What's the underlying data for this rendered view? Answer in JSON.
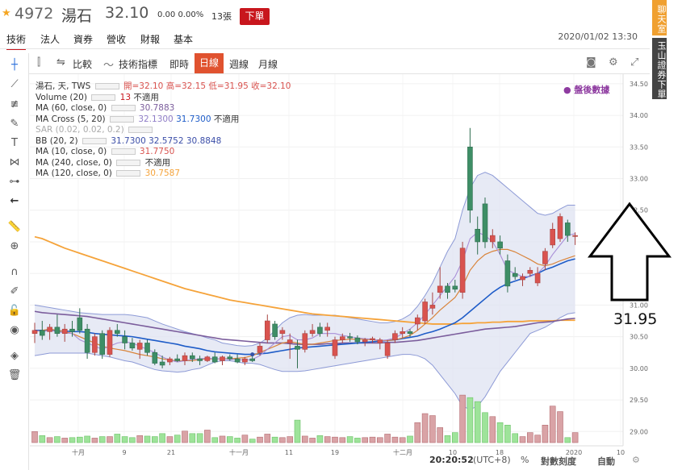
{
  "header": {
    "code": "4972",
    "name": "湯石",
    "price": "32.10",
    "change": "0.00 0.00%",
    "volume": "13張",
    "order_label": "下單"
  },
  "tabs": [
    "技術",
    "法人",
    "資券",
    "營收",
    "財報",
    "基本"
  ],
  "datetime": "2020/01/02 13:30",
  "side": {
    "chat": "聊天室",
    "broker": "玉山證券下單"
  },
  "toolbar": {
    "compare": "比較",
    "indicators": "技術指標",
    "realtime": "即時",
    "daily": "日線",
    "weekly": "週線",
    "monthly": "月線"
  },
  "legend": {
    "main": "湯石, 天, TWS",
    "ohlc": [
      "開=32.10",
      "高=32.15",
      "低=31.95",
      "收=32.10"
    ],
    "volume_label": "Volume (20)",
    "volume_value": "13",
    "volume_na": "不適用",
    "ma60_label": "MA (60, close, 0)",
    "ma60_value": "30.7883",
    "macross_label": "MA Cross (5, 20)",
    "macross_v1": "32.1300",
    "macross_v2": "31.7300",
    "macross_na": "不適用",
    "sar_label": "SAR (0.02, 0.02, 0.2)",
    "bb_label": "BB (20, 2)",
    "bb_values": [
      "31.7300",
      "32.5752",
      "30.8848"
    ],
    "ma10_label": "MA (10, close, 0)",
    "ma10_value": "31.7750",
    "ma240_label": "MA (240, close, 0)",
    "ma240_na": "不適用",
    "ma120_label": "MA (120, close, 0)",
    "ma120_value": "30.7587"
  },
  "after_hours": "● 盤後數據",
  "status": {
    "time": "20:20:52",
    "tz": "(UTC+8)",
    "percent": "%",
    "log_scale": "對數刻度",
    "auto": "自動"
  },
  "annotation": {
    "value": "31.95"
  },
  "colors": {
    "up": "#d9534f",
    "down": "#3e8e66",
    "ma_orange": "#f5a33a",
    "ma_blue": "#1e5cc8",
    "ma_purple": "#7b5d9c",
    "bb_fill": "#dfe3f1",
    "vol_up": "#d9a3a6",
    "vol_down": "#9ee39a",
    "price_tag": "#e23a34"
  },
  "chart_data": {
    "type": "candlestick",
    "y_axis": {
      "range": [
        28.8,
        34.6
      ],
      "ticks": [
        "34.50",
        "34.00",
        "33.50",
        "33.00",
        "32.50",
        "32.00",
        "31.50",
        "31.00",
        "30.50",
        "30.00",
        "29.50",
        "29.00"
      ]
    },
    "x_axis": {
      "ticks": [
        "十月",
        "9",
        "21",
        "十一月",
        "11",
        "19",
        "十二月",
        "10",
        "18",
        "2020",
        "10"
      ]
    },
    "last_price": "32.10",
    "candles": [
      {
        "o": 30.55,
        "h": 30.72,
        "l": 30.4,
        "c": 30.6
      },
      {
        "o": 30.6,
        "h": 30.75,
        "l": 30.45,
        "c": 30.52
      },
      {
        "o": 30.58,
        "h": 30.7,
        "l": 30.45,
        "c": 30.65
      },
      {
        "o": 30.65,
        "h": 30.85,
        "l": 30.5,
        "c": 30.55
      },
      {
        "o": 30.55,
        "h": 30.7,
        "l": 30.42,
        "c": 30.62
      },
      {
        "o": 30.62,
        "h": 30.75,
        "l": 30.5,
        "c": 30.58
      },
      {
        "o": 30.8,
        "h": 30.95,
        "l": 30.55,
        "c": 30.6
      },
      {
        "o": 30.62,
        "h": 30.7,
        "l": 30.15,
        "c": 30.25
      },
      {
        "o": 30.25,
        "h": 30.55,
        "l": 30.2,
        "c": 30.5
      },
      {
        "o": 30.55,
        "h": 30.6,
        "l": 30.15,
        "c": 30.22
      },
      {
        "o": 30.22,
        "h": 30.65,
        "l": 30.18,
        "c": 30.6
      },
      {
        "o": 30.6,
        "h": 30.7,
        "l": 30.5,
        "c": 30.55
      },
      {
        "o": 30.5,
        "h": 30.6,
        "l": 30.3,
        "c": 30.4
      },
      {
        "o": 30.4,
        "h": 30.48,
        "l": 30.28,
        "c": 30.32
      },
      {
        "o": 30.3,
        "h": 30.45,
        "l": 30.15,
        "c": 30.4
      },
      {
        "o": 30.4,
        "h": 30.45,
        "l": 30.2,
        "c": 30.25
      },
      {
        "o": 30.25,
        "h": 30.3,
        "l": 30.05,
        "c": 30.08
      },
      {
        "o": 30.1,
        "h": 30.2,
        "l": 30.0,
        "c": 30.05
      },
      {
        "o": 30.1,
        "h": 30.18,
        "l": 30.05,
        "c": 30.15
      },
      {
        "o": 30.15,
        "h": 30.22,
        "l": 30.1,
        "c": 30.12
      },
      {
        "o": 30.12,
        "h": 30.25,
        "l": 30.05,
        "c": 30.2
      },
      {
        "o": 30.2,
        "h": 30.25,
        "l": 30.1,
        "c": 30.15
      },
      {
        "o": 30.15,
        "h": 30.2,
        "l": 30.05,
        "c": 30.12
      },
      {
        "o": 30.12,
        "h": 30.2,
        "l": 30.1,
        "c": 30.18
      },
      {
        "o": 30.18,
        "h": 30.25,
        "l": 30.08,
        "c": 30.1
      },
      {
        "o": 30.12,
        "h": 30.2,
        "l": 30.05,
        "c": 30.18
      },
      {
        "o": 30.18,
        "h": 30.22,
        "l": 30.12,
        "c": 30.15
      },
      {
        "o": 30.15,
        "h": 30.22,
        "l": 30.08,
        "c": 30.1
      },
      {
        "o": 30.1,
        "h": 30.18,
        "l": 30.05,
        "c": 30.15
      },
      {
        "o": 30.15,
        "h": 30.2,
        "l": 30.1,
        "c": 30.12
      },
      {
        "o": 30.25,
        "h": 30.4,
        "l": 30.2,
        "c": 30.35
      },
      {
        "o": 30.45,
        "h": 30.85,
        "l": 30.4,
        "c": 30.75
      },
      {
        "o": 30.7,
        "h": 30.75,
        "l": 30.45,
        "c": 30.5
      },
      {
        "o": 30.55,
        "h": 30.65,
        "l": 30.45,
        "c": 30.6
      },
      {
        "o": 30.4,
        "h": 30.55,
        "l": 30.15,
        "c": 30.45
      },
      {
        "o": 30.35,
        "h": 30.45,
        "l": 30.0,
        "c": 30.3
      },
      {
        "o": 30.3,
        "h": 30.6,
        "l": 30.25,
        "c": 30.55
      },
      {
        "o": 30.55,
        "h": 30.7,
        "l": 30.5,
        "c": 30.6
      },
      {
        "o": 30.65,
        "h": 30.72,
        "l": 30.5,
        "c": 30.55
      },
      {
        "o": 30.6,
        "h": 30.72,
        "l": 30.5,
        "c": 30.65
      },
      {
        "o": 30.2,
        "h": 30.5,
        "l": 30.15,
        "c": 30.45
      },
      {
        "o": 30.45,
        "h": 30.55,
        "l": 30.4,
        "c": 30.5
      },
      {
        "o": 30.5,
        "h": 30.56,
        "l": 30.42,
        "c": 30.48
      },
      {
        "o": 30.48,
        "h": 30.52,
        "l": 30.38,
        "c": 30.42
      },
      {
        "o": 30.42,
        "h": 30.48,
        "l": 30.35,
        "c": 30.45
      },
      {
        "o": 30.45,
        "h": 30.5,
        "l": 30.4,
        "c": 30.47
      },
      {
        "o": 30.4,
        "h": 30.48,
        "l": 30.3,
        "c": 30.45
      },
      {
        "o": 30.2,
        "h": 30.45,
        "l": 30.15,
        "c": 30.4
      },
      {
        "o": 30.45,
        "h": 30.6,
        "l": 30.4,
        "c": 30.55
      },
      {
        "o": 30.55,
        "h": 30.65,
        "l": 30.48,
        "c": 30.58
      },
      {
        "o": 30.58,
        "h": 30.62,
        "l": 30.5,
        "c": 30.55
      },
      {
        "o": 30.7,
        "h": 30.85,
        "l": 30.6,
        "c": 30.8
      },
      {
        "o": 30.75,
        "h": 31.1,
        "l": 30.7,
        "c": 31.05
      },
      {
        "o": 30.95,
        "h": 31.2,
        "l": 30.85,
        "c": 31.0
      },
      {
        "o": 31.2,
        "h": 31.6,
        "l": 31.1,
        "c": 31.3
      },
      {
        "o": 31.3,
        "h": 31.35,
        "l": 31.1,
        "c": 31.2
      },
      {
        "o": 31.3,
        "h": 31.4,
        "l": 31.2,
        "c": 31.25
      },
      {
        "o": 31.2,
        "h": 32.0,
        "l": 31.1,
        "c": 31.9
      },
      {
        "o": 33.5,
        "h": 33.8,
        "l": 32.3,
        "c": 32.5
      },
      {
        "o": 32.2,
        "h": 32.4,
        "l": 31.8,
        "c": 32.0
      },
      {
        "o": 32.6,
        "h": 32.7,
        "l": 31.9,
        "c": 32.0
      },
      {
        "o": 32.0,
        "h": 32.2,
        "l": 31.9,
        "c": 32.1
      },
      {
        "o": 32.0,
        "h": 32.1,
        "l": 31.8,
        "c": 31.9
      },
      {
        "o": 31.7,
        "h": 31.8,
        "l": 31.2,
        "c": 31.3
      },
      {
        "o": 31.5,
        "h": 31.6,
        "l": 31.4,
        "c": 31.45
      },
      {
        "o": 31.4,
        "h": 31.5,
        "l": 31.3,
        "c": 31.45
      },
      {
        "o": 31.5,
        "h": 31.6,
        "l": 31.45,
        "c": 31.55
      },
      {
        "o": 31.35,
        "h": 31.6,
        "l": 31.3,
        "c": 31.5
      },
      {
        "o": 31.65,
        "h": 31.9,
        "l": 31.55,
        "c": 31.85
      },
      {
        "o": 31.95,
        "h": 32.3,
        "l": 31.9,
        "c": 32.2
      },
      {
        "o": 32.05,
        "h": 32.45,
        "l": 32.0,
        "c": 32.4
      },
      {
        "o": 32.3,
        "h": 32.35,
        "l": 32.0,
        "c": 32.1
      },
      {
        "o": 32.1,
        "h": 32.15,
        "l": 31.95,
        "c": 32.1
      }
    ],
    "volume": [
      22,
      14,
      10,
      12,
      9,
      10,
      11,
      13,
      9,
      12,
      12,
      17,
      12,
      10,
      14,
      13,
      12,
      18,
      12,
      15,
      23,
      18,
      18,
      25,
      10,
      13,
      12,
      9,
      15,
      7,
      11,
      17,
      11,
      10,
      12,
      45,
      13,
      9,
      14,
      12,
      11,
      10,
      12,
      9,
      10,
      11,
      10,
      17,
      11,
      10,
      13,
      40,
      58,
      54,
      30,
      14,
      20,
      95,
      90,
      82,
      60,
      52,
      40,
      35,
      18,
      12,
      20,
      15,
      35,
      73,
      62,
      10,
      20
    ],
    "ma120": [
      32.08,
      32.05,
      32.0,
      31.95,
      31.9,
      31.86,
      31.82,
      31.78,
      31.74,
      31.7,
      31.66,
      31.62,
      31.58,
      31.54,
      31.5,
      31.46,
      31.42,
      31.38,
      31.34,
      31.3,
      31.26,
      31.23,
      31.2,
      31.17,
      31.14,
      31.11,
      31.08,
      31.06,
      31.04,
      31.02,
      31.0,
      30.98,
      30.96,
      30.94,
      30.92,
      30.9,
      30.88,
      30.86,
      30.85,
      30.84,
      30.83,
      30.82,
      30.81,
      30.8,
      30.79,
      30.78,
      30.77,
      30.76,
      30.75,
      30.74,
      30.73,
      30.72,
      30.71,
      30.7,
      30.7,
      30.7,
      30.7,
      30.71,
      30.71,
      30.72,
      30.72,
      30.73,
      30.73,
      30.74,
      30.74,
      30.74,
      30.75,
      30.75,
      30.75,
      30.75,
      30.76,
      30.76,
      30.76
    ],
    "ma60": [
      30.9,
      30.88,
      30.87,
      30.86,
      30.85,
      30.84,
      30.83,
      30.82,
      30.8,
      30.78,
      30.76,
      30.74,
      30.72,
      30.7,
      30.68,
      30.66,
      30.64,
      30.62,
      30.6,
      30.58,
      30.56,
      30.54,
      30.52,
      30.5,
      30.48,
      30.46,
      30.45,
      30.44,
      30.43,
      30.42,
      30.41,
      30.4,
      30.4,
      30.4,
      30.39,
      30.38,
      30.38,
      30.38,
      30.38,
      30.39,
      30.39,
      30.4,
      30.4,
      30.4,
      30.4,
      30.4,
      30.4,
      30.41,
      30.41,
      30.42,
      30.43,
      30.44,
      30.46,
      30.48,
      30.5,
      30.52,
      30.54,
      30.56,
      30.58,
      30.6,
      30.62,
      30.63,
      30.64,
      30.65,
      30.66,
      30.68,
      30.7,
      30.72,
      30.73,
      30.74,
      30.76,
      30.78,
      30.79
    ],
    "ma20": [
      30.6,
      30.6,
      30.6,
      30.59,
      30.59,
      30.58,
      30.58,
      30.57,
      30.55,
      30.54,
      30.53,
      30.52,
      30.51,
      30.5,
      30.48,
      30.46,
      30.44,
      30.42,
      30.4,
      30.38,
      30.35,
      30.33,
      30.31,
      30.28,
      30.26,
      30.25,
      30.24,
      30.23,
      30.22,
      30.22,
      30.23,
      30.24,
      30.26,
      30.28,
      30.3,
      30.32,
      30.33,
      30.34,
      30.35,
      30.36,
      30.37,
      30.38,
      30.39,
      30.4,
      30.41,
      30.42,
      30.43,
      30.44,
      30.45,
      30.47,
      30.49,
      30.51,
      30.55,
      30.58,
      30.62,
      30.67,
      30.72,
      30.8,
      30.9,
      31.0,
      31.1,
      31.2,
      31.28,
      31.34,
      31.38,
      31.42,
      31.46,
      31.5,
      31.56,
      31.6,
      31.65,
      31.7,
      31.73
    ],
    "ma10": [
      30.58,
      30.6,
      30.62,
      30.6,
      30.58,
      30.55,
      30.5,
      30.45,
      30.4,
      30.35,
      30.32,
      30.3,
      30.28,
      30.25,
      30.22,
      30.2,
      30.18,
      30.15,
      30.13,
      30.12,
      30.12,
      30.12,
      30.14,
      30.15,
      30.15,
      30.15,
      30.15,
      30.16,
      30.17,
      30.2,
      30.25,
      30.3,
      30.35,
      30.4,
      30.42,
      30.4,
      30.38,
      30.38,
      30.4,
      30.42,
      30.44,
      30.45,
      30.46,
      30.46,
      30.46,
      30.45,
      30.44,
      30.44,
      30.45,
      30.48,
      30.52,
      30.6,
      30.7,
      30.8,
      30.92,
      31.02,
      31.12,
      31.3,
      31.55,
      31.7,
      31.8,
      31.85,
      31.88,
      31.88,
      31.84,
      31.78,
      31.72,
      31.65,
      31.62,
      31.65,
      31.7,
      31.74,
      31.78
    ],
    "ma5": [
      30.6,
      30.58,
      30.6,
      30.58,
      30.56,
      30.55,
      30.45,
      30.4,
      30.35,
      30.3,
      30.35,
      30.4,
      30.42,
      30.4,
      30.35,
      30.3,
      30.25,
      30.18,
      30.13,
      30.1,
      30.12,
      30.14,
      30.15,
      30.16,
      30.15,
      30.15,
      30.14,
      30.14,
      30.13,
      30.14,
      30.2,
      30.3,
      30.4,
      30.5,
      30.52,
      30.45,
      30.45,
      30.48,
      30.55,
      30.55,
      30.55,
      30.52,
      30.5,
      30.48,
      30.47,
      30.46,
      30.44,
      30.45,
      30.48,
      30.55,
      30.62,
      30.72,
      30.85,
      31.0,
      31.15,
      31.3,
      31.45,
      31.7,
      32.05,
      32.15,
      32.1,
      32.0,
      31.8,
      31.55,
      31.5,
      31.45,
      31.45,
      31.5,
      31.62,
      31.8,
      31.95,
      32.1,
      32.13
    ],
    "bb_upper": [
      31.0,
      30.98,
      30.96,
      30.94,
      30.92,
      30.9,
      30.88,
      30.87,
      30.86,
      30.85,
      30.85,
      30.85,
      30.85,
      30.84,
      30.82,
      30.8,
      30.75,
      30.7,
      30.66,
      30.62,
      30.58,
      30.55,
      30.52,
      30.48,
      30.45,
      30.4,
      30.38,
      30.36,
      30.35,
      30.36,
      30.4,
      30.48,
      30.6,
      30.72,
      30.8,
      30.84,
      30.85,
      30.84,
      30.84,
      30.84,
      30.84,
      30.82,
      30.8,
      30.78,
      30.76,
      30.74,
      30.72,
      30.72,
      30.74,
      30.78,
      30.85,
      30.98,
      31.15,
      31.35,
      31.6,
      31.85,
      32.05,
      32.5,
      32.85,
      33.05,
      33.1,
      33.05,
      32.95,
      32.85,
      32.75,
      32.65,
      32.55,
      32.45,
      32.42,
      32.45,
      32.52,
      32.58,
      32.58
    ],
    "bb_lower": [
      30.2,
      30.22,
      30.24,
      30.24,
      30.24,
      30.24,
      30.24,
      30.24,
      30.22,
      30.2,
      30.18,
      30.15,
      30.12,
      30.1,
      30.06,
      30.02,
      29.98,
      29.96,
      29.95,
      29.94,
      29.95,
      29.98,
      30.0,
      30.05,
      30.1,
      30.12,
      30.12,
      30.1,
      30.08,
      30.08,
      30.06,
      30.02,
      29.98,
      29.95,
      29.95,
      29.95,
      29.96,
      29.98,
      30.0,
      30.02,
      30.04,
      30.06,
      30.08,
      30.1,
      30.12,
      30.14,
      30.16,
      30.18,
      30.2,
      30.22,
      30.22,
      30.2,
      30.15,
      30.05,
      29.9,
      29.75,
      29.6,
      29.4,
      29.35,
      29.4,
      29.55,
      29.75,
      29.95,
      30.1,
      30.25,
      30.4,
      30.55,
      30.6,
      30.65,
      30.72,
      30.8,
      30.86,
      30.88
    ]
  }
}
